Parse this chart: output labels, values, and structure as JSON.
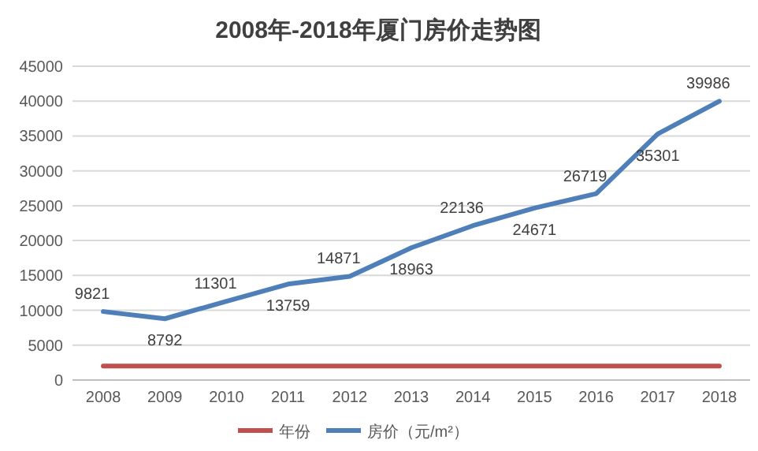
{
  "chart_data": {
    "type": "line",
    "title": "2008年-2018年厦门房价走势图",
    "categories": [
      "2008",
      "2009",
      "2010",
      "2011",
      "2012",
      "2013",
      "2014",
      "2015",
      "2016",
      "2017",
      "2018"
    ],
    "series": [
      {
        "name": "年份",
        "color": "#c0504d",
        "values": [
          2008,
          2009,
          2010,
          2011,
          2012,
          2013,
          2014,
          2015,
          2016,
          2017,
          2018
        ]
      },
      {
        "name": "房价（元/m²）",
        "color": "#4f7fb8",
        "values": [
          9821,
          8792,
          11301,
          13759,
          14871,
          18963,
          22136,
          24671,
          26719,
          35301,
          39986
        ],
        "value_labels": [
          "9821",
          "8792",
          "11301",
          "13759",
          "14871",
          "18963",
          "22136",
          "24671",
          "26719",
          "35301",
          "39986"
        ]
      }
    ],
    "ylim": [
      0,
      45000
    ],
    "yticks": [
      0,
      5000,
      10000,
      15000,
      20000,
      25000,
      30000,
      35000,
      40000,
      45000
    ],
    "grid": "y",
    "legend": "bottom"
  }
}
